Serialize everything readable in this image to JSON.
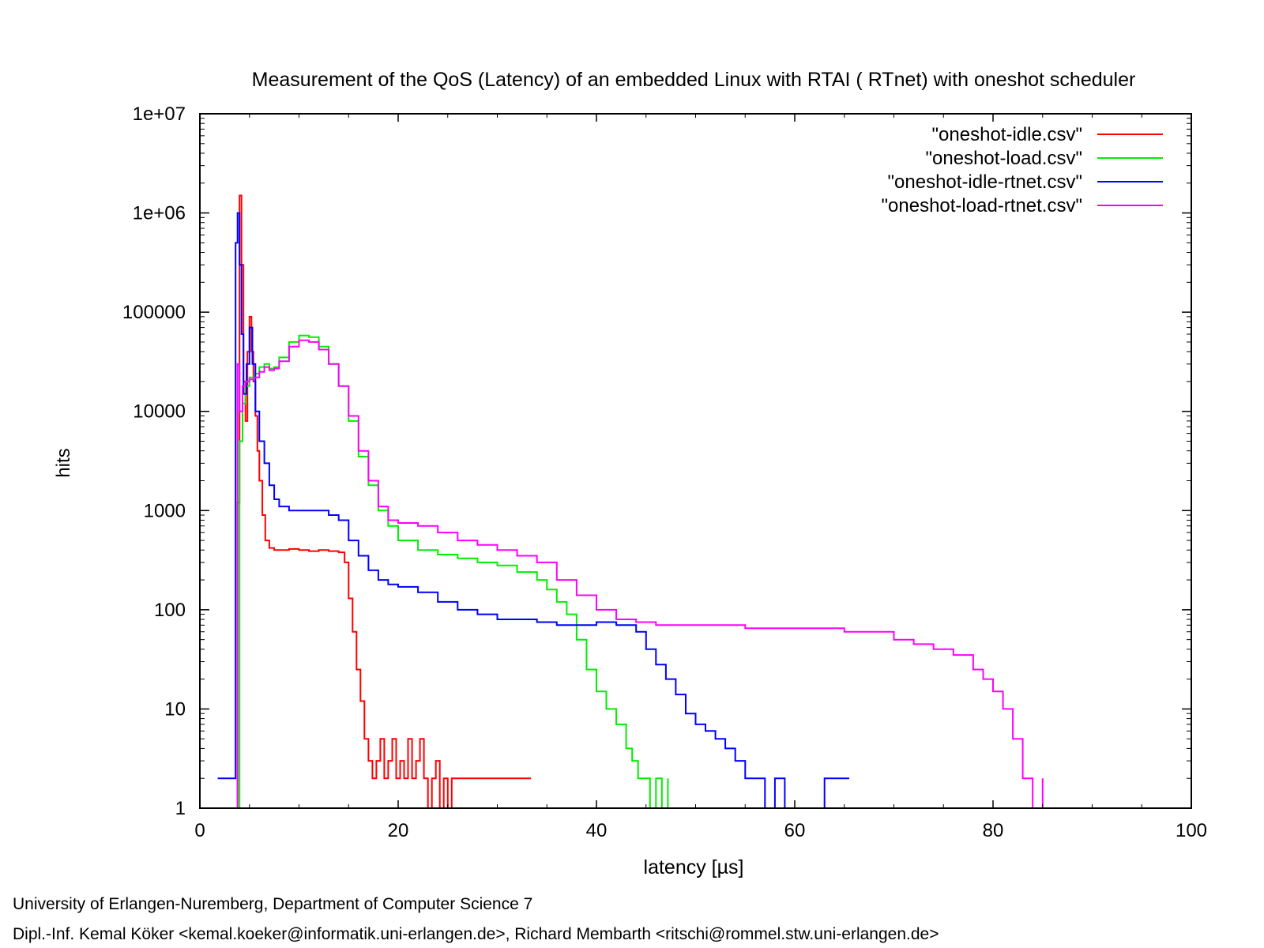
{
  "chart_data": {
    "type": "line",
    "title": "Measurement of the QoS (Latency) of an embedded Linux with RTAI ( RTnet) with oneshot scheduler",
    "xlabel": "latency [µs]",
    "ylabel": "hits",
    "xlim": [
      0,
      100
    ],
    "ylim": [
      1,
      10000000
    ],
    "yscale": "log",
    "x_ticks": [
      0,
      20,
      40,
      60,
      80,
      100
    ],
    "y_ticks": [
      1,
      10,
      100,
      1000,
      10000,
      100000,
      1000000,
      10000000
    ],
    "y_tick_labels": [
      "1",
      "10",
      "100",
      "1000",
      "10000",
      "100000",
      "1e+06",
      "1e+07"
    ],
    "grid": false,
    "legend_position": "top-right",
    "series": [
      {
        "name": "\"oneshot-idle.csv\"",
        "color": "#ff0000",
        "x": [
          3.6,
          3.8,
          4.0,
          4.2,
          4.4,
          4.6,
          4.8,
          5.0,
          5.2,
          5.4,
          5.6,
          5.8,
          6.0,
          6.3,
          6.6,
          7.0,
          7.5,
          8,
          9,
          10,
          11,
          12,
          13,
          14,
          14.6,
          15,
          15.4,
          15.8,
          16.2,
          16.6,
          17.0,
          17.4,
          17.8,
          18.2,
          18.6,
          19.0,
          19.4,
          19.8,
          20.2,
          20.6,
          21.0,
          21.4,
          21.8,
          22.2,
          22.6,
          23.0,
          23.4,
          23.8,
          24.2,
          24.6,
          25.0,
          25.4,
          33.4
        ],
        "y": [
          1,
          1200,
          1500000,
          300000,
          20000,
          8000,
          40000,
          90000,
          40000,
          20000,
          9000,
          4000,
          2000,
          900,
          500,
          420,
          400,
          400,
          410,
          400,
          390,
          400,
          390,
          380,
          300,
          130,
          60,
          25,
          12,
          5,
          3,
          2,
          3,
          5,
          2,
          3,
          5,
          2,
          3,
          2,
          5,
          2,
          3,
          5,
          2,
          1,
          2,
          3,
          1,
          2,
          1,
          2,
          2
        ]
      },
      {
        "name": "\"oneshot-load.csv\"",
        "color": "#00ee00",
        "x": [
          3.8,
          4.0,
          4.3,
          4.6,
          5.0,
          5.5,
          6.0,
          6.5,
          7.0,
          7.5,
          8,
          9,
          10,
          11,
          12,
          13,
          14,
          15,
          16,
          17,
          18,
          19,
          20,
          22,
          24,
          26,
          28,
          30,
          32,
          34,
          35,
          36,
          37,
          38,
          39,
          40,
          41,
          42,
          43,
          43.6,
          44.2,
          44.8,
          45.4,
          46.0,
          46.6,
          47.2
        ],
        "y": [
          1,
          5000,
          12000,
          18000,
          22000,
          24000,
          28000,
          30000,
          27000,
          28000,
          35000,
          50000,
          58000,
          56000,
          45000,
          30000,
          18000,
          8000,
          3500,
          1800,
          1000,
          700,
          500,
          400,
          360,
          330,
          300,
          280,
          240,
          200,
          160,
          120,
          90,
          50,
          25,
          15,
          10,
          7,
          4,
          3,
          2,
          2,
          1,
          2,
          1,
          2
        ]
      },
      {
        "name": "\"oneshot-idle-rtnet.csv\"",
        "color": "#0000ff",
        "x": [
          1.8,
          2.4,
          3.6,
          3.8,
          4.0,
          4.2,
          4.4,
          4.7,
          5.0,
          5.3,
          5.6,
          6.0,
          6.5,
          7.0,
          7.5,
          8,
          9,
          10,
          11,
          12,
          13,
          14,
          15,
          16,
          17,
          18,
          19,
          20,
          22,
          24,
          26,
          28,
          30,
          32,
          34,
          36,
          38,
          40,
          42,
          44,
          45,
          46,
          47,
          48,
          49,
          50,
          51,
          52,
          53,
          54,
          55,
          56,
          57,
          58,
          59,
          60,
          63,
          64,
          65.5
        ],
        "y": [
          2,
          2,
          500000,
          1000000,
          300000,
          60000,
          15000,
          30000,
          70000,
          30000,
          10000,
          5000,
          3000,
          1800,
          1300,
          1100,
          1000,
          1000,
          1000,
          1000,
          900,
          800,
          500,
          350,
          250,
          200,
          180,
          170,
          150,
          120,
          100,
          90,
          80,
          80,
          75,
          70,
          70,
          75,
          70,
          60,
          40,
          28,
          20,
          14,
          9,
          7,
          6,
          5,
          4,
          3,
          2,
          2,
          1,
          2,
          1,
          1,
          2,
          2,
          2
        ]
      },
      {
        "name": "\"oneshot-load-rtnet.csv\"",
        "color": "#ff00ff",
        "x": [
          3.6,
          3.8,
          4.0,
          4.3,
          4.6,
          5.0,
          5.5,
          6.0,
          6.5,
          7.0,
          7.5,
          8,
          9,
          10,
          11,
          12,
          13,
          14,
          15,
          16,
          17,
          18,
          19,
          20,
          22,
          24,
          26,
          28,
          30,
          32,
          34,
          36,
          38,
          40,
          42,
          44,
          46,
          48,
          50,
          55,
          60,
          65,
          70,
          72,
          74,
          76,
          78,
          79,
          80,
          81,
          82,
          83,
          84,
          85
        ],
        "y": [
          1,
          30000,
          10000,
          18000,
          20000,
          21000,
          22000,
          25000,
          28000,
          26000,
          27000,
          32000,
          45000,
          52000,
          50000,
          42000,
          30000,
          18000,
          9000,
          4000,
          2000,
          1100,
          800,
          750,
          700,
          600,
          500,
          450,
          400,
          350,
          300,
          200,
          140,
          100,
          80,
          75,
          70,
          70,
          70,
          65,
          65,
          60,
          50,
          45,
          40,
          35,
          25,
          20,
          15,
          10,
          5,
          2,
          1,
          2
        ]
      }
    ]
  },
  "footer": {
    "line1": "University of Erlangen-Nuremberg, Department of Computer Science 7",
    "line2": "Dipl.-Inf. Kemal Köker <kemal.koeker@informatik.uni-erlangen.de>, Richard Membarth <ritschi@rommel.stw.uni-erlangen.de>"
  }
}
